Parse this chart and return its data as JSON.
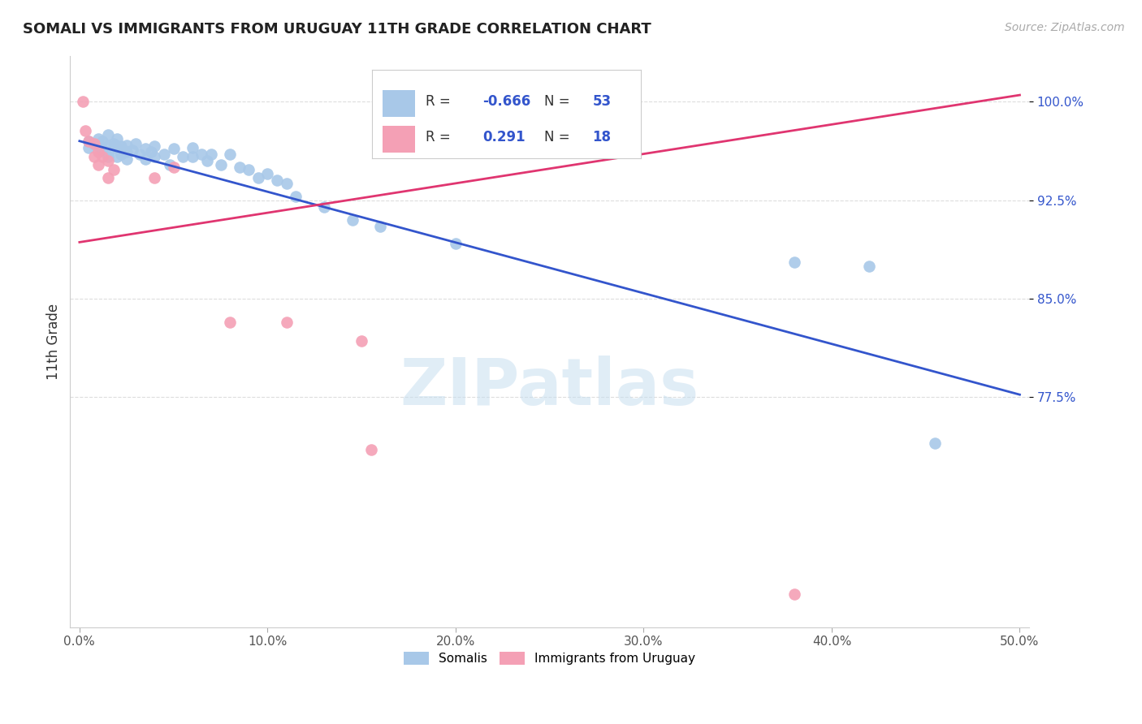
{
  "title": "SOMALI VS IMMIGRANTS FROM URUGUAY 11TH GRADE CORRELATION CHART",
  "source": "Source: ZipAtlas.com",
  "ylabel": "11th Grade",
  "xlim": [
    -0.005,
    0.505
  ],
  "ylim": [
    0.6,
    1.035
  ],
  "xtick_labels": [
    "0.0%",
    "10.0%",
    "20.0%",
    "30.0%",
    "40.0%",
    "50.0%"
  ],
  "xtick_vals": [
    0.0,
    0.1,
    0.2,
    0.3,
    0.4,
    0.5
  ],
  "ytick_labels": [
    "77.5%",
    "85.0%",
    "92.5%",
    "100.0%"
  ],
  "ytick_vals": [
    0.775,
    0.85,
    0.925,
    1.0
  ],
  "legend_r_blue": "-0.666",
  "legend_n_blue": "53",
  "legend_r_pink": "0.291",
  "legend_n_pink": "18",
  "blue_color": "#a8c8e8",
  "pink_color": "#f4a0b5",
  "blue_line_color": "#3355cc",
  "pink_line_color": "#e03570",
  "watermark": "ZIPatlas",
  "blue_scatter_x": [
    0.005,
    0.005,
    0.008,
    0.01,
    0.01,
    0.012,
    0.012,
    0.015,
    0.015,
    0.015,
    0.015,
    0.018,
    0.02,
    0.02,
    0.02,
    0.022,
    0.022,
    0.025,
    0.025,
    0.025,
    0.028,
    0.03,
    0.032,
    0.035,
    0.035,
    0.038,
    0.04,
    0.04,
    0.045,
    0.048,
    0.05,
    0.055,
    0.06,
    0.06,
    0.065,
    0.068,
    0.07,
    0.075,
    0.08,
    0.085,
    0.09,
    0.095,
    0.1,
    0.105,
    0.11,
    0.115,
    0.13,
    0.145,
    0.16,
    0.2,
    0.38,
    0.42,
    0.455
  ],
  "blue_scatter_y": [
    0.97,
    0.965,
    0.968,
    0.972,
    0.966,
    0.97,
    0.963,
    0.975,
    0.967,
    0.962,
    0.958,
    0.968,
    0.972,
    0.965,
    0.958,
    0.966,
    0.96,
    0.967,
    0.962,
    0.956,
    0.963,
    0.968,
    0.96,
    0.964,
    0.956,
    0.962,
    0.966,
    0.958,
    0.96,
    0.952,
    0.964,
    0.958,
    0.965,
    0.958,
    0.96,
    0.955,
    0.96,
    0.952,
    0.96,
    0.95,
    0.948,
    0.942,
    0.945,
    0.94,
    0.938,
    0.928,
    0.92,
    0.91,
    0.905,
    0.892,
    0.878,
    0.875,
    0.74
  ],
  "pink_scatter_x": [
    0.002,
    0.003,
    0.005,
    0.008,
    0.008,
    0.01,
    0.01,
    0.012,
    0.015,
    0.015,
    0.018,
    0.04,
    0.05,
    0.08,
    0.11,
    0.15,
    0.155,
    0.38
  ],
  "pink_scatter_y": [
    1.0,
    0.978,
    0.97,
    0.968,
    0.958,
    0.962,
    0.952,
    0.958,
    0.955,
    0.942,
    0.948,
    0.942,
    0.95,
    0.832,
    0.832,
    0.818,
    0.735,
    0.625
  ],
  "blue_line_x0": 0.0,
  "blue_line_y0": 0.97,
  "blue_line_x1": 0.5,
  "blue_line_y1": 0.777,
  "pink_line_x0": 0.0,
  "pink_line_y0": 0.893,
  "pink_line_x1": 0.5,
  "pink_line_y1": 1.005,
  "background_color": "#ffffff",
  "grid_color": "#dddddd"
}
